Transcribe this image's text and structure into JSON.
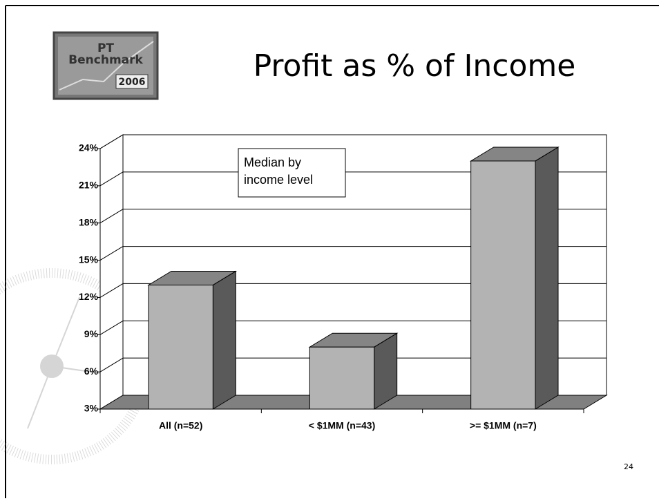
{
  "logo": {
    "line1": "PT",
    "line2": "Benchmark",
    "year": "2006"
  },
  "page_number": "24",
  "chart_data": {
    "type": "bar3d",
    "title": "Profit as % of Income",
    "annotation": [
      "Median by",
      "income level"
    ],
    "categories": [
      "All (n=52)",
      "< $1MM (n=43)",
      ">= $1MM (n=7)"
    ],
    "values": [
      13,
      8,
      23
    ],
    "colors": {
      "front": "#b3b3b3",
      "top": "#858585",
      "side": "#5a5a5a",
      "floor": "#808080"
    },
    "ylim": [
      3,
      24
    ],
    "yticks": [
      {
        "value": 3,
        "label": "3%"
      },
      {
        "value": 6,
        "label": "6%"
      },
      {
        "value": 9,
        "label": "9%"
      },
      {
        "value": 12,
        "label": "12%"
      },
      {
        "value": 15,
        "label": "15%"
      },
      {
        "value": 18,
        "label": "18%"
      },
      {
        "value": 21,
        "label": "21%"
      },
      {
        "value": 24,
        "label": "24%"
      }
    ],
    "grid": true
  }
}
